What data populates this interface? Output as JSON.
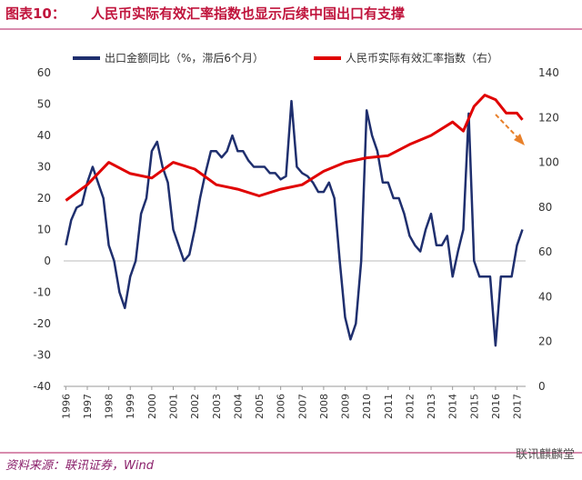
{
  "chart_data": {
    "type": "line",
    "figure_label": "图表10：",
    "title": "人民币实际有效汇率指数也显示后续中国出口有支撑",
    "source": "资料来源：联讯证券，Wind",
    "watermark": "联讯麒麟堂",
    "xlim": [
      1995.9,
      2017.4
    ],
    "xticks": [
      1996,
      1997,
      1998,
      1999,
      2000,
      2001,
      2002,
      2003,
      2004,
      2005,
      2006,
      2007,
      2008,
      2009,
      2010,
      2011,
      2012,
      2013,
      2014,
      2015,
      2016,
      2017
    ],
    "ylim": [
      -40,
      60
    ],
    "yticks": [
      -40,
      -30,
      -20,
      -10,
      0,
      10,
      20,
      30,
      40,
      50,
      60
    ],
    "y2lim": [
      0,
      140
    ],
    "y2ticks": [
      0,
      20,
      40,
      60,
      80,
      100,
      120,
      140
    ],
    "legend": "top",
    "series": [
      {
        "name": "出口金额同比（%，滞后6个月）",
        "color": "#1f2f6e",
        "axis": "y",
        "x": [
          1996.0,
          1996.25,
          1996.5,
          1996.75,
          1997.0,
          1997.25,
          1997.5,
          1997.75,
          1998.0,
          1998.25,
          1998.5,
          1998.75,
          1999.0,
          1999.25,
          1999.5,
          1999.75,
          2000.0,
          2000.25,
          2000.5,
          2000.75,
          2001.0,
          2001.25,
          2001.5,
          2001.75,
          2002.0,
          2002.25,
          2002.5,
          2002.75,
          2003.0,
          2003.25,
          2003.5,
          2003.75,
          2004.0,
          2004.25,
          2004.5,
          2004.75,
          2005.0,
          2005.25,
          2005.5,
          2005.75,
          2006.0,
          2006.25,
          2006.5,
          2006.75,
          2007.0,
          2007.25,
          2007.5,
          2007.75,
          2008.0,
          2008.25,
          2008.5,
          2008.75,
          2009.0,
          2009.25,
          2009.5,
          2009.75,
          2010.0,
          2010.25,
          2010.5,
          2010.75,
          2011.0,
          2011.25,
          2011.5,
          2011.75,
          2012.0,
          2012.25,
          2012.5,
          2012.75,
          2013.0,
          2013.25,
          2013.5,
          2013.75,
          2014.0,
          2014.25,
          2014.5,
          2014.75,
          2015.0,
          2015.25,
          2015.5,
          2015.75,
          2016.0,
          2016.25,
          2016.5,
          2016.75,
          2017.0,
          2017.25
        ],
        "values": [
          5,
          13,
          17,
          18,
          25,
          30,
          25,
          20,
          5,
          0,
          -10,
          -15,
          -5,
          0,
          15,
          20,
          35,
          38,
          30,
          25,
          10,
          5,
          0,
          2,
          10,
          20,
          28,
          35,
          35,
          33,
          35,
          40,
          35,
          35,
          32,
          30,
          30,
          30,
          28,
          28,
          26,
          27,
          51,
          30,
          28,
          27,
          25,
          22,
          22,
          25,
          20,
          0,
          -18,
          -25,
          -20,
          0,
          48,
          40,
          35,
          25,
          25,
          20,
          20,
          15,
          8,
          5,
          3,
          10,
          15,
          5,
          5,
          8,
          -5,
          3,
          10,
          47,
          0,
          -5,
          -5,
          -5,
          -27,
          -5,
          -5,
          -5,
          5,
          10
        ]
      },
      {
        "name": "人民币实际有效汇率指数（右）",
        "color": "#e00000",
        "axis": "y2",
        "x": [
          1996.0,
          1997.0,
          1998.0,
          1999.0,
          2000.0,
          2001.0,
          2002.0,
          2003.0,
          2004.0,
          2005.0,
          2006.0,
          2007.0,
          2008.0,
          2009.0,
          2010.0,
          2011.0,
          2012.0,
          2013.0,
          2014.0,
          2014.5,
          2015.0,
          2015.5,
          2016.0,
          2016.5,
          2017.0,
          2017.25
        ],
        "values": [
          83,
          90,
          100,
          95,
          93,
          100,
          97,
          90,
          88,
          85,
          88,
          90,
          96,
          100,
          102,
          103,
          108,
          112,
          118,
          114,
          125,
          130,
          128,
          122,
          122,
          119
        ]
      }
    ]
  }
}
